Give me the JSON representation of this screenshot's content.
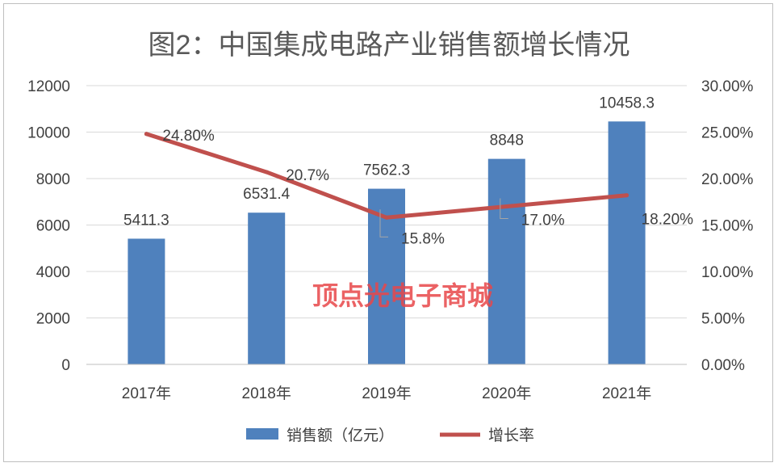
{
  "chart_data": {
    "type": "bar",
    "title": "图2：中国集成电路产业销售额增长情况",
    "categories": [
      "2017年",
      "2018年",
      "2019年",
      "2020年",
      "2021年"
    ],
    "series": [
      {
        "name": "销售额（亿元）",
        "type": "bar",
        "axis": "left",
        "color": "#4f81bd",
        "values": [
          5411.3,
          6531.4,
          7562.3,
          8848,
          10458.3
        ],
        "labels": [
          "5411.3",
          "6531.4",
          "7562.3",
          "8848",
          "10458.3"
        ]
      },
      {
        "name": "增长率",
        "type": "line",
        "axis": "right",
        "color": "#c0504d",
        "values": [
          24.8,
          20.7,
          15.8,
          17.0,
          18.2
        ],
        "labels": [
          "24.80%",
          "20.7%",
          "15.8%",
          "17.0%",
          "18.20%"
        ]
      }
    ],
    "y_left": {
      "ylim": [
        0,
        12000
      ],
      "ticks": [
        0,
        2000,
        4000,
        6000,
        8000,
        10000,
        12000
      ],
      "tick_labels": [
        "0",
        "2000",
        "4000",
        "6000",
        "8000",
        "10000",
        "12000"
      ]
    },
    "y_right": {
      "ylim": [
        0,
        30
      ],
      "ticks": [
        0,
        5,
        10,
        15,
        20,
        25,
        30
      ],
      "tick_labels": [
        "0.00%",
        "5.00%",
        "10.00%",
        "15.00%",
        "20.00%",
        "25.00%",
        "30.00%"
      ]
    },
    "grid": true,
    "legend_position": "bottom"
  },
  "watermark": "顶点光电子商城"
}
